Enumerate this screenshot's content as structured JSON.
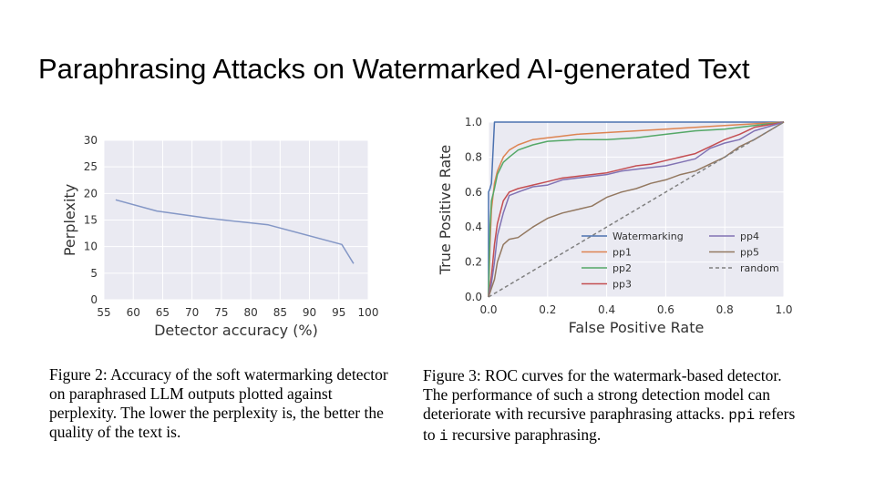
{
  "slide": {
    "title": "Paraphrasing Attacks on Watermarked AI-generated Text"
  },
  "captions": {
    "fig2": "Figure 2: Accuracy of the soft watermarking detector on paraphrased LLM outputs plotted against perplexity. The lower the perplexity is, the better the quality of the text is.",
    "fig3_before": "Figure 3: ROC curves for the watermark-based detector. The performance of such a strong detection model can deteriorate with recursive paraphrasing attacks. ",
    "fig3_code1": "ppi",
    "fig3_mid": " refers to ",
    "fig3_code2": "i",
    "fig3_after": " recursive paraphrasing."
  },
  "chart_data": [
    {
      "type": "line",
      "xlabel": "Detector accuracy (%)",
      "ylabel": "Perplexity",
      "xlim": [
        55,
        100
      ],
      "ylim": [
        0,
        30
      ],
      "xticks": [
        "55",
        "60",
        "65",
        "70",
        "75",
        "80",
        "85",
        "90",
        "95",
        "100"
      ],
      "yticks": [
        "0",
        "5",
        "10",
        "15",
        "20",
        "25",
        "30"
      ],
      "grid": true,
      "x": [
        57,
        64,
        73,
        83,
        95.5,
        97.5
      ],
      "y": [
        18.8,
        16.7,
        15.3,
        14.1,
        10.4,
        6.8
      ],
      "color": "#8497c6"
    },
    {
      "type": "line",
      "xlabel": "False Positive Rate",
      "ylabel": "True Positive Rate",
      "xlim": [
        0,
        1
      ],
      "ylim": [
        0,
        1
      ],
      "xticks": [
        "0.0",
        "0.2",
        "0.4",
        "0.6",
        "0.8",
        "1.0"
      ],
      "yticks": [
        "0.0",
        "0.2",
        "0.4",
        "0.6",
        "0.8",
        "1.0"
      ],
      "grid": true,
      "legend_position": "lower-right",
      "series": [
        {
          "name": "Watermarking",
          "color": "#4c72b0",
          "dashed": false,
          "x": [
            0,
            0,
            0.005,
            0.01,
            0.02,
            0.03,
            0.05,
            0.1,
            0.3,
            0.6,
            1.0
          ],
          "y": [
            0,
            0.6,
            0.62,
            0.65,
            1.0,
            1.0,
            1.0,
            1.0,
            1.0,
            1.0,
            1.0
          ]
        },
        {
          "name": "pp1",
          "color": "#dd8452",
          "dashed": false,
          "x": [
            0,
            0.005,
            0.01,
            0.02,
            0.03,
            0.05,
            0.07,
            0.1,
            0.15,
            0.2,
            0.25,
            0.3,
            0.4,
            0.5,
            0.6,
            0.7,
            0.8,
            0.9,
            1.0
          ],
          "y": [
            0,
            0.3,
            0.5,
            0.65,
            0.72,
            0.8,
            0.84,
            0.87,
            0.9,
            0.91,
            0.92,
            0.93,
            0.94,
            0.95,
            0.96,
            0.97,
            0.98,
            0.99,
            1.0
          ]
        },
        {
          "name": "pp2",
          "color": "#55a868",
          "dashed": false,
          "x": [
            0,
            0.005,
            0.01,
            0.02,
            0.03,
            0.05,
            0.07,
            0.1,
            0.15,
            0.2,
            0.3,
            0.4,
            0.5,
            0.6,
            0.7,
            0.8,
            0.9,
            1.0
          ],
          "y": [
            0,
            0.4,
            0.55,
            0.62,
            0.7,
            0.77,
            0.8,
            0.84,
            0.87,
            0.89,
            0.9,
            0.9,
            0.91,
            0.93,
            0.95,
            0.96,
            0.98,
            1.0
          ]
        },
        {
          "name": "pp3",
          "color": "#c44e52",
          "dashed": false,
          "x": [
            0,
            0.01,
            0.02,
            0.03,
            0.05,
            0.07,
            0.1,
            0.15,
            0.2,
            0.25,
            0.3,
            0.35,
            0.4,
            0.45,
            0.5,
            0.55,
            0.6,
            0.65,
            0.7,
            0.75,
            0.8,
            0.85,
            0.9,
            1.0
          ],
          "y": [
            0,
            0.12,
            0.3,
            0.42,
            0.55,
            0.6,
            0.62,
            0.64,
            0.66,
            0.68,
            0.69,
            0.7,
            0.71,
            0.73,
            0.75,
            0.76,
            0.78,
            0.8,
            0.82,
            0.86,
            0.9,
            0.93,
            0.97,
            1.0
          ]
        },
        {
          "name": "pp4",
          "color": "#8172b3",
          "dashed": false,
          "x": [
            0,
            0.01,
            0.02,
            0.03,
            0.05,
            0.07,
            0.1,
            0.15,
            0.2,
            0.25,
            0.3,
            0.35,
            0.4,
            0.45,
            0.5,
            0.55,
            0.6,
            0.65,
            0.7,
            0.75,
            0.8,
            0.85,
            0.9,
            1.0
          ],
          "y": [
            0,
            0.08,
            0.2,
            0.35,
            0.48,
            0.58,
            0.6,
            0.63,
            0.64,
            0.67,
            0.68,
            0.69,
            0.7,
            0.72,
            0.73,
            0.74,
            0.75,
            0.77,
            0.79,
            0.85,
            0.88,
            0.9,
            0.95,
            1.0
          ]
        },
        {
          "name": "pp5",
          "color": "#937860",
          "dashed": false,
          "x": [
            0,
            0.01,
            0.02,
            0.03,
            0.05,
            0.07,
            0.1,
            0.15,
            0.2,
            0.25,
            0.3,
            0.35,
            0.4,
            0.45,
            0.5,
            0.55,
            0.6,
            0.65,
            0.7,
            0.75,
            0.8,
            0.85,
            0.9,
            0.95,
            1.0
          ],
          "y": [
            0,
            0.05,
            0.1,
            0.2,
            0.3,
            0.33,
            0.34,
            0.4,
            0.45,
            0.48,
            0.5,
            0.52,
            0.57,
            0.6,
            0.62,
            0.65,
            0.67,
            0.7,
            0.72,
            0.76,
            0.8,
            0.86,
            0.9,
            0.95,
            1.0
          ]
        },
        {
          "name": "random",
          "color": "#808080",
          "dashed": true,
          "x": [
            0,
            1
          ],
          "y": [
            0,
            1
          ]
        }
      ]
    }
  ]
}
